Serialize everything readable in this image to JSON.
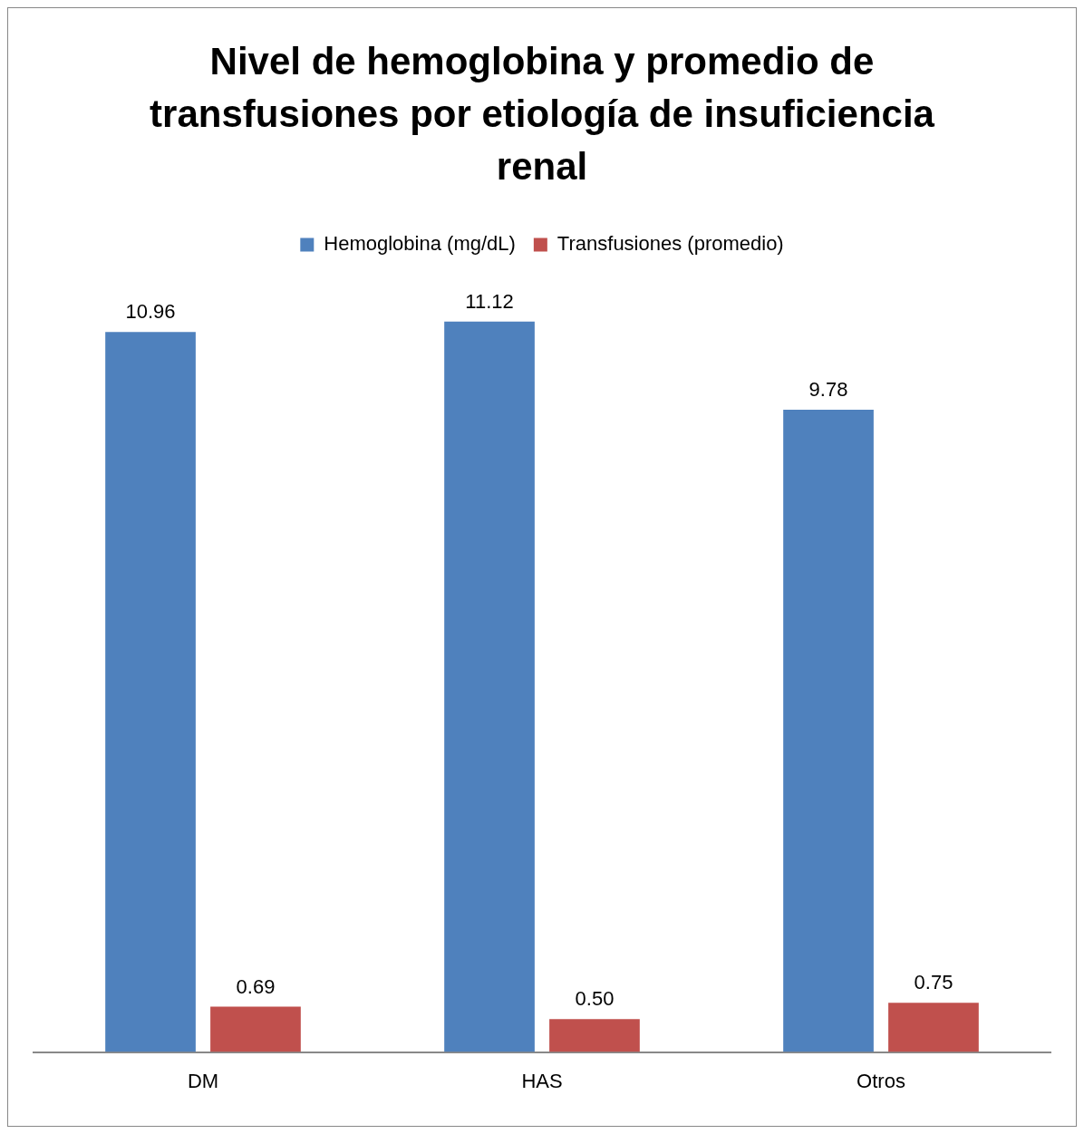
{
  "chart_data": {
    "type": "bar",
    "title": "Nivel de hemoglobina y promedio de transfusiones por etiología de insuficiencia renal",
    "categories": [
      "DM",
      "HAS",
      "Otros"
    ],
    "series": [
      {
        "name": "Hemoglobina (mg/dL)",
        "color": "#4f81bd",
        "values": [
          10.96,
          11.12,
          9.78
        ],
        "value_labels": [
          "10.96",
          "11.12",
          "9.78"
        ]
      },
      {
        "name": "Transfusiones (promedio)",
        "color": "#c0504d",
        "values": [
          0.69,
          0.5,
          0.75
        ],
        "value_labels": [
          "0.69",
          "0.50",
          "0.75"
        ]
      }
    ],
    "legend": "top"
  }
}
